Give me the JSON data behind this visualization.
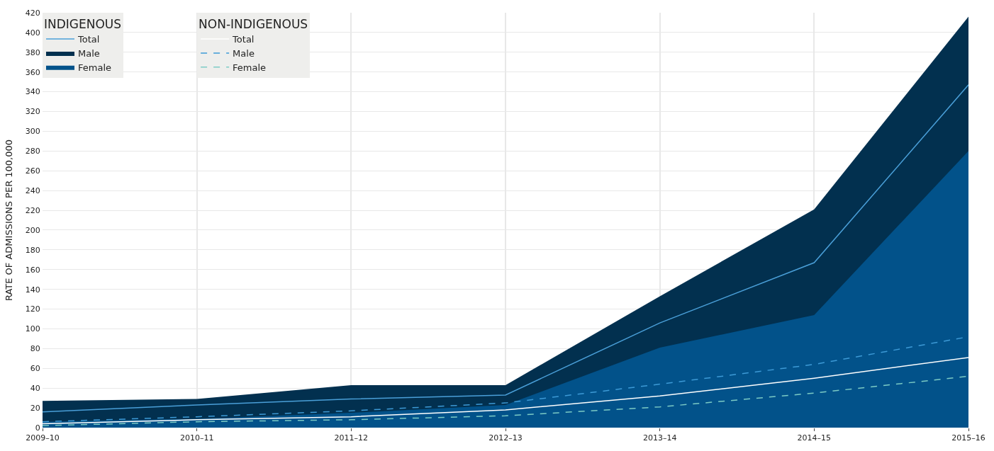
{
  "chart_data": {
    "type": "area",
    "ylabel": "RATE OF ADMISSIONS PER 100,000",
    "categories": [
      "2009–10",
      "2010–11",
      "2011–12",
      "2012–13",
      "2013–14",
      "2014–15",
      "2015–16"
    ],
    "ylim": [
      0,
      420
    ],
    "yticks": [
      0,
      20,
      40,
      60,
      80,
      100,
      120,
      140,
      160,
      180,
      200,
      220,
      240,
      260,
      280,
      300,
      320,
      340,
      360,
      380,
      400,
      420
    ],
    "grid": true,
    "legend": "top left",
    "legend_title": [
      "INDIGENOUS",
      "NON-INDIGENOUS"
    ],
    "series": [
      {
        "name": "Total",
        "type": "line",
        "color": "#4a9fd8",
        "line_style": "solid",
        "values": [
          16,
          23,
          29,
          33,
          106,
          167,
          347
        ]
      },
      {
        "name": "Male",
        "color": "#02304f",
        "values": [
          27,
          29,
          43,
          43,
          133,
          221,
          416
        ]
      },
      {
        "name": "Female",
        "color": "#02528a",
        "values": [
          6,
          9,
          15,
          23,
          81,
          114,
          280
        ]
      },
      {
        "name": "Total",
        "type": "line",
        "color": "#ffffff",
        "line_style": "solid",
        "values": [
          4,
          8,
          11,
          18,
          32,
          50,
          71
        ]
      },
      {
        "name": "Male",
        "type": "line",
        "color": "#3d9ad6",
        "line_style": "dashed",
        "values": [
          6,
          11,
          17,
          25,
          44,
          64,
          92
        ]
      },
      {
        "name": "Female",
        "type": "line",
        "color": "#7ccbc5",
        "line_style": "dashed",
        "values": [
          2,
          6,
          8,
          12,
          21,
          35,
          52
        ]
      }
    ]
  }
}
